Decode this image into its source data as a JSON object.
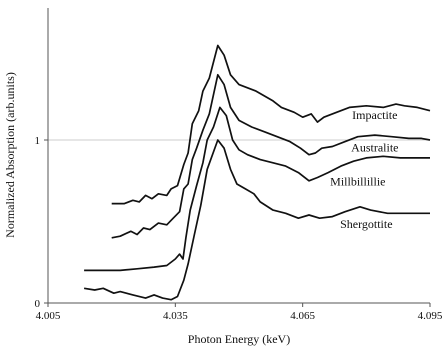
{
  "chart_data": {
    "type": "line",
    "title": "",
    "xlabel": "Photon Energy (keV)",
    "ylabel": "Normalized Absorption (arb.units)",
    "xlim": [
      4.005,
      4.095
    ],
    "ylim": [
      0,
      1.8
    ],
    "x_ticks": [
      "4.005",
      "4.035",
      "4.065",
      "4.095"
    ],
    "y_ticks": [
      "0",
      "1"
    ],
    "grid": "horizontal at y=1",
    "legend": "inline labels next to curves",
    "series": [
      {
        "name": "Impactite",
        "points": [
          [
            4.02,
            0.61
          ],
          [
            4.023,
            0.61
          ],
          [
            4.025,
            0.63
          ],
          [
            4.0265,
            0.62
          ],
          [
            4.028,
            0.66
          ],
          [
            4.0295,
            0.64
          ],
          [
            4.031,
            0.67
          ],
          [
            4.033,
            0.66
          ],
          [
            4.034,
            0.7
          ],
          [
            4.0355,
            0.72
          ],
          [
            4.037,
            0.85
          ],
          [
            4.038,
            0.92
          ],
          [
            4.039,
            1.1
          ],
          [
            4.0405,
            1.18
          ],
          [
            4.0415,
            1.3
          ],
          [
            4.043,
            1.38
          ],
          [
            4.045,
            1.58
          ],
          [
            4.0465,
            1.52
          ],
          [
            4.048,
            1.4
          ],
          [
            4.05,
            1.34
          ],
          [
            4.052,
            1.32
          ],
          [
            4.054,
            1.3
          ],
          [
            4.056,
            1.27
          ],
          [
            4.058,
            1.24
          ],
          [
            4.06,
            1.2
          ],
          [
            4.063,
            1.17
          ],
          [
            4.065,
            1.14
          ],
          [
            4.067,
            1.16
          ],
          [
            4.0685,
            1.11
          ],
          [
            4.07,
            1.14
          ],
          [
            4.073,
            1.17
          ],
          [
            4.076,
            1.2
          ],
          [
            4.08,
            1.21
          ],
          [
            4.084,
            1.2
          ],
          [
            4.087,
            1.22
          ],
          [
            4.089,
            1.21
          ],
          [
            4.092,
            1.2
          ],
          [
            4.095,
            1.18
          ]
        ]
      },
      {
        "name": "Australite",
        "points": [
          [
            4.02,
            0.4
          ],
          [
            4.022,
            0.41
          ],
          [
            4.0245,
            0.44
          ],
          [
            4.026,
            0.42
          ],
          [
            4.0275,
            0.46
          ],
          [
            4.029,
            0.45
          ],
          [
            4.031,
            0.49
          ],
          [
            4.033,
            0.48
          ],
          [
            4.0345,
            0.52
          ],
          [
            4.036,
            0.56
          ],
          [
            4.037,
            0.7
          ],
          [
            4.038,
            0.73
          ],
          [
            4.039,
            0.88
          ],
          [
            4.04,
            0.95
          ],
          [
            4.0415,
            1.06
          ],
          [
            4.043,
            1.16
          ],
          [
            4.045,
            1.4
          ],
          [
            4.0465,
            1.34
          ],
          [
            4.048,
            1.2
          ],
          [
            4.05,
            1.12
          ],
          [
            4.053,
            1.08
          ],
          [
            4.056,
            1.05
          ],
          [
            4.059,
            1.02
          ],
          [
            4.062,
            0.99
          ],
          [
            4.0645,
            0.95
          ],
          [
            4.0665,
            0.91
          ],
          [
            4.068,
            0.92
          ],
          [
            4.0695,
            0.95
          ],
          [
            4.072,
            0.96
          ],
          [
            4.075,
            0.99
          ],
          [
            4.078,
            1.02
          ],
          [
            4.082,
            1.03
          ],
          [
            4.086,
            1.02
          ],
          [
            4.09,
            1.01
          ],
          [
            4.093,
            1.01
          ],
          [
            4.095,
            1.0
          ]
        ]
      },
      {
        "name": "Millbillillie",
        "points": [
          [
            4.0135,
            0.2
          ],
          [
            4.018,
            0.2
          ],
          [
            4.022,
            0.2
          ],
          [
            4.026,
            0.21
          ],
          [
            4.03,
            0.22
          ],
          [
            4.033,
            0.23
          ],
          [
            4.035,
            0.27
          ],
          [
            4.036,
            0.3
          ],
          [
            4.0368,
            0.27
          ],
          [
            4.0375,
            0.4
          ],
          [
            4.0385,
            0.57
          ],
          [
            4.04,
            0.72
          ],
          [
            4.0415,
            0.86
          ],
          [
            4.0425,
            1.0
          ],
          [
            4.044,
            1.08
          ],
          [
            4.0455,
            1.2
          ],
          [
            4.047,
            1.15
          ],
          [
            4.0485,
            1.0
          ],
          [
            4.05,
            0.94
          ],
          [
            4.052,
            0.91
          ],
          [
            4.055,
            0.88
          ],
          [
            4.058,
            0.86
          ],
          [
            4.061,
            0.84
          ],
          [
            4.064,
            0.8
          ],
          [
            4.0665,
            0.75
          ],
          [
            4.0685,
            0.77
          ],
          [
            4.071,
            0.8
          ],
          [
            4.074,
            0.84
          ],
          [
            4.077,
            0.87
          ],
          [
            4.08,
            0.89
          ],
          [
            4.084,
            0.9
          ],
          [
            4.088,
            0.89
          ],
          [
            4.092,
            0.89
          ],
          [
            4.095,
            0.89
          ]
        ]
      },
      {
        "name": "Shergottite",
        "points": [
          [
            4.0135,
            0.09
          ],
          [
            4.016,
            0.08
          ],
          [
            4.018,
            0.09
          ],
          [
            4.0205,
            0.06
          ],
          [
            4.022,
            0.07
          ],
          [
            4.025,
            0.05
          ],
          [
            4.028,
            0.03
          ],
          [
            4.03,
            0.05
          ],
          [
            4.032,
            0.03
          ],
          [
            4.034,
            0.02
          ],
          [
            4.0355,
            0.04
          ],
          [
            4.037,
            0.14
          ],
          [
            4.038,
            0.24
          ],
          [
            4.0395,
            0.42
          ],
          [
            4.041,
            0.6
          ],
          [
            4.0425,
            0.82
          ],
          [
            4.045,
            1.0
          ],
          [
            4.0465,
            0.95
          ],
          [
            4.048,
            0.82
          ],
          [
            4.0495,
            0.73
          ],
          [
            4.0515,
            0.7
          ],
          [
            4.0535,
            0.67
          ],
          [
            4.055,
            0.62
          ],
          [
            4.058,
            0.57
          ],
          [
            4.061,
            0.55
          ],
          [
            4.064,
            0.52
          ],
          [
            4.0665,
            0.54
          ],
          [
            4.069,
            0.52
          ],
          [
            4.072,
            0.53
          ],
          [
            4.075,
            0.56
          ],
          [
            4.0785,
            0.59
          ],
          [
            4.081,
            0.57
          ],
          [
            4.085,
            0.55
          ],
          [
            4.09,
            0.55
          ],
          [
            4.095,
            0.55
          ]
        ]
      }
    ],
    "series_label_positions": [
      {
        "name": "Impactite",
        "x": 4.082,
        "y": 1.13
      },
      {
        "name": "Australite",
        "x": 4.082,
        "y": 0.93
      },
      {
        "name": "Millbillillie",
        "x": 4.078,
        "y": 0.72
      },
      {
        "name": "Shergottite",
        "x": 4.08,
        "y": 0.46
      }
    ]
  }
}
